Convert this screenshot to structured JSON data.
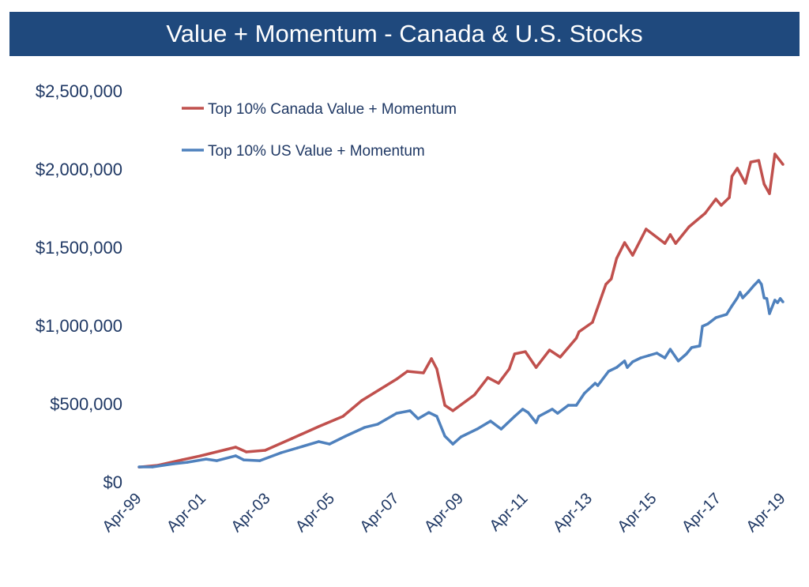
{
  "chart_data": {
    "type": "line",
    "title": "Value + Momentum - Canada & U.S. Stocks",
    "xlabel": "",
    "ylabel": "",
    "ylim": [
      0,
      2500000
    ],
    "xlim": [
      "1999-04",
      "2019-04"
    ],
    "yticks": [
      "$0",
      "$500,000",
      "$1,000,000",
      "$1,500,000",
      "$2,000,000",
      "$2,500,000"
    ],
    "ytick_values": [
      0,
      500000,
      1000000,
      1500000,
      2000000,
      2500000
    ],
    "xticks": [
      "Apr-99",
      "Apr-01",
      "Apr-03",
      "Apr-05",
      "Apr-07",
      "Apr-09",
      "Apr-11",
      "Apr-13",
      "Apr-15",
      "Apr-17",
      "Apr-19"
    ],
    "xtick_dates": [
      "1999-04",
      "2001-04",
      "2003-04",
      "2005-04",
      "2007-04",
      "2009-04",
      "2011-04",
      "2013-04",
      "2015-04",
      "2017-04",
      "2019-04"
    ],
    "grid": false,
    "legend_position": "top-left",
    "series": [
      {
        "name": "Top 10% Canada Value + Momentum",
        "color": "#c0504d",
        "points": [
          [
            "1999-04",
            95000
          ],
          [
            "1999-11",
            106000
          ],
          [
            "2000-08",
            141000
          ],
          [
            "2001-03",
            167000
          ],
          [
            "2002-04",
            222000
          ],
          [
            "2002-08",
            192000
          ],
          [
            "2003-03",
            202000
          ],
          [
            "2004-01",
            278000
          ],
          [
            "2004-11",
            354000
          ],
          [
            "2005-08",
            419000
          ],
          [
            "2006-03",
            520000
          ],
          [
            "2007-04",
            657000
          ],
          [
            "2007-08",
            707000
          ],
          [
            "2008-02",
            697000
          ],
          [
            "2008-05",
            788000
          ],
          [
            "2008-07",
            722000
          ],
          [
            "2008-10",
            490000
          ],
          [
            "2009-01",
            455000
          ],
          [
            "2009-09",
            556000
          ],
          [
            "2010-02",
            667000
          ],
          [
            "2010-06",
            631000
          ],
          [
            "2010-10",
            722000
          ],
          [
            "2010-12",
            818000
          ],
          [
            "2011-04",
            833000
          ],
          [
            "2011-08",
            732000
          ],
          [
            "2012-01",
            843000
          ],
          [
            "2012-05",
            798000
          ],
          [
            "2012-11",
            919000
          ],
          [
            "2012-12",
            960000
          ],
          [
            "2013-05",
            1020000
          ],
          [
            "2013-10",
            1263000
          ],
          [
            "2013-12",
            1298000
          ],
          [
            "2014-02",
            1429000
          ],
          [
            "2014-05",
            1530000
          ],
          [
            "2014-08",
            1449000
          ],
          [
            "2015-01",
            1616000
          ],
          [
            "2015-08",
            1525000
          ],
          [
            "2015-10",
            1581000
          ],
          [
            "2015-12",
            1525000
          ],
          [
            "2016-05",
            1631000
          ],
          [
            "2016-11",
            1717000
          ],
          [
            "2017-03",
            1808000
          ],
          [
            "2017-05",
            1768000
          ],
          [
            "2017-08",
            1818000
          ],
          [
            "2017-09",
            1954000
          ],
          [
            "2017-11",
            2005000
          ],
          [
            "2018-02",
            1909000
          ],
          [
            "2018-04",
            2045000
          ],
          [
            "2018-07",
            2055000
          ],
          [
            "2018-09",
            1904000
          ],
          [
            "2018-11",
            1843000
          ],
          [
            "2019-01",
            2096000
          ],
          [
            "2019-04",
            2030000
          ]
        ]
      },
      {
        "name": "Top 10% US Value + Momentum",
        "color": "#4f81bd",
        "points": [
          [
            "1999-04",
            96000
          ],
          [
            "1999-09",
            96000
          ],
          [
            "2000-05",
            116000
          ],
          [
            "2000-10",
            126000
          ],
          [
            "2001-05",
            146000
          ],
          [
            "2001-09",
            136000
          ],
          [
            "2002-04",
            167000
          ],
          [
            "2002-07",
            141000
          ],
          [
            "2003-01",
            136000
          ],
          [
            "2003-09",
            187000
          ],
          [
            "2004-03",
            217000
          ],
          [
            "2004-11",
            258000
          ],
          [
            "2005-03",
            242000
          ],
          [
            "2005-09",
            293000
          ],
          [
            "2006-04",
            348000
          ],
          [
            "2006-09",
            369000
          ],
          [
            "2007-04",
            439000
          ],
          [
            "2007-09",
            455000
          ],
          [
            "2007-12",
            404000
          ],
          [
            "2008-04",
            444000
          ],
          [
            "2008-07",
            419000
          ],
          [
            "2008-10",
            293000
          ],
          [
            "2009-01",
            242000
          ],
          [
            "2009-04",
            288000
          ],
          [
            "2009-10",
            338000
          ],
          [
            "2010-03",
            389000
          ],
          [
            "2010-07",
            338000
          ],
          [
            "2010-12",
            419000
          ],
          [
            "2011-03",
            465000
          ],
          [
            "2011-05",
            444000
          ],
          [
            "2011-08",
            379000
          ],
          [
            "2011-09",
            419000
          ],
          [
            "2012-02",
            465000
          ],
          [
            "2012-04",
            439000
          ],
          [
            "2012-08",
            490000
          ],
          [
            "2012-11",
            490000
          ],
          [
            "2013-02",
            566000
          ],
          [
            "2013-06",
            631000
          ],
          [
            "2013-07",
            616000
          ],
          [
            "2013-11",
            707000
          ],
          [
            "2014-02",
            732000
          ],
          [
            "2014-05",
            773000
          ],
          [
            "2014-06",
            732000
          ],
          [
            "2014-08",
            768000
          ],
          [
            "2014-11",
            793000
          ],
          [
            "2015-02",
            808000
          ],
          [
            "2015-05",
            823000
          ],
          [
            "2015-08",
            793000
          ],
          [
            "2015-10",
            848000
          ],
          [
            "2016-01",
            773000
          ],
          [
            "2016-04",
            818000
          ],
          [
            "2016-06",
            859000
          ],
          [
            "2016-09",
            869000
          ],
          [
            "2016-10",
            995000
          ],
          [
            "2016-12",
            1010000
          ],
          [
            "2017-03",
            1050000
          ],
          [
            "2017-07",
            1071000
          ],
          [
            "2017-09",
            1126000
          ],
          [
            "2017-11",
            1177000
          ],
          [
            "2017-12",
            1212000
          ],
          [
            "2018-01",
            1177000
          ],
          [
            "2018-03",
            1212000
          ],
          [
            "2018-05",
            1252000
          ],
          [
            "2018-07",
            1288000
          ],
          [
            "2018-08",
            1263000
          ],
          [
            "2018-09",
            1177000
          ],
          [
            "2018-10",
            1172000
          ],
          [
            "2018-11",
            1076000
          ],
          [
            "2019-01",
            1162000
          ],
          [
            "2019-02",
            1146000
          ],
          [
            "2019-03",
            1172000
          ],
          [
            "2019-04",
            1151000
          ]
        ]
      }
    ]
  }
}
